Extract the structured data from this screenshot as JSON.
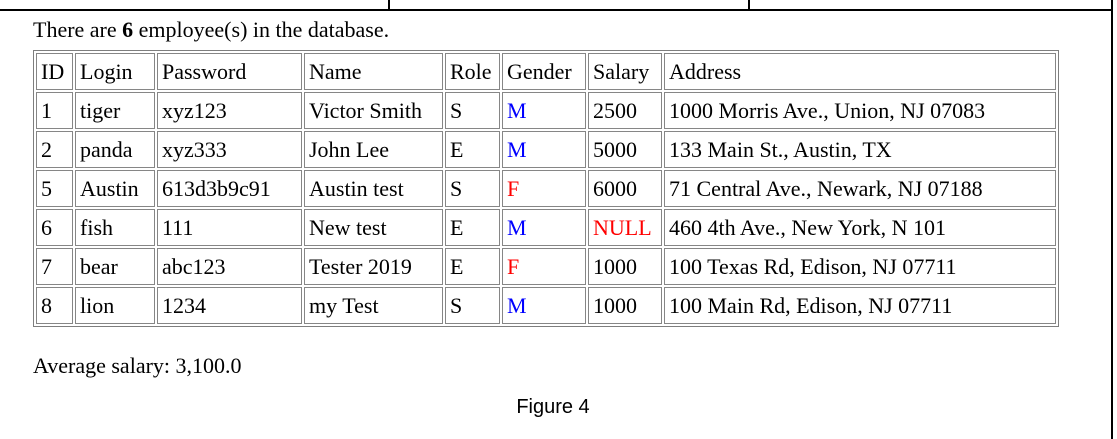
{
  "summary": {
    "prefix": "There are ",
    "count": "6",
    "suffix": " employee(s) in the database."
  },
  "table": {
    "headers": [
      "ID",
      "Login",
      "Password",
      "Name",
      "Role",
      "Gender",
      "Salary",
      "Address"
    ],
    "rows": [
      [
        "1",
        "tiger",
        "xyz123",
        "Victor Smith",
        "S",
        "M",
        "2500",
        "1000 Morris Ave., Union, NJ 07083"
      ],
      [
        "2",
        "panda",
        "xyz333",
        "John Lee",
        "E",
        "M",
        "5000",
        "133 Main St., Austin, TX"
      ],
      [
        "5",
        "Austin",
        "613d3b9c91",
        "Austin test",
        "S",
        "F",
        "6000",
        "71 Central Ave., Newark, NJ 07188"
      ],
      [
        "6",
        "fish",
        "111",
        "New test",
        "E",
        "M",
        "NULL",
        "460 4th Ave., New York, N 101"
      ],
      [
        "7",
        "bear",
        "abc123",
        "Tester 2019",
        "E",
        "F",
        "1000",
        "100 Texas Rd, Edison, NJ 07711"
      ],
      [
        "8",
        "lion",
        "1234",
        "my Test",
        "S",
        "M",
        "1000",
        "100 Main Rd, Edison, NJ 07711"
      ]
    ]
  },
  "footer": {
    "average_label": "Average salary: ",
    "average_value": "3,100.0",
    "figure_caption": "Figure 4"
  },
  "colors": {
    "male": "#0000ff",
    "female": "#ff0000",
    "null_value": "#ff0000",
    "grid": "#808080",
    "frame_line": "#000000"
  }
}
